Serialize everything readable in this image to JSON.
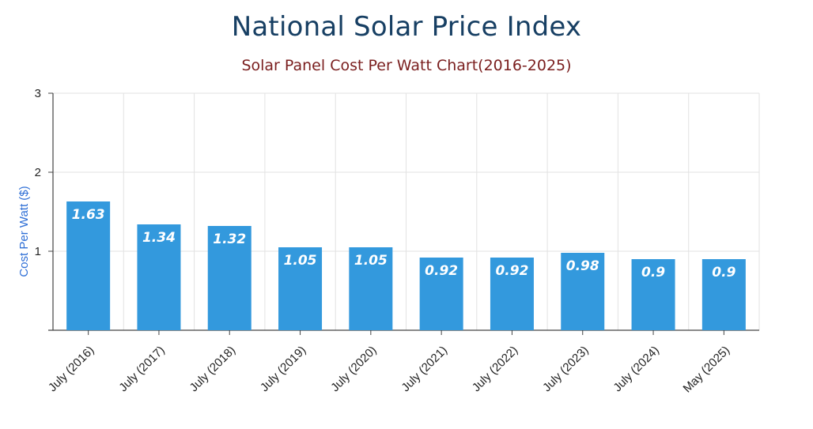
{
  "chart_data": {
    "type": "bar",
    "title": "National Solar Price Index",
    "subtitle": "Solar Panel Cost Per Watt Chart(2016-2025)",
    "xlabel": "",
    "ylabel": "Cost Per Watt ($)",
    "categories": [
      "July (2016)",
      "July (2017)",
      "July (2018)",
      "July (2019)",
      "July (2020)",
      "July (2021)",
      "July (2022)",
      "July (2023)",
      "July (2024)",
      "May (2025)"
    ],
    "values": [
      1.63,
      1.34,
      1.32,
      1.05,
      1.05,
      0.92,
      0.92,
      0.98,
      0.9,
      0.9
    ],
    "data_labels": [
      "1.63",
      "1.34",
      "1.32",
      "1.05",
      "1.05",
      "0.92",
      "0.92",
      "0.98",
      "0.9",
      "0.9"
    ],
    "ylim": [
      0,
      3
    ],
    "yticks": [
      1,
      2,
      3
    ],
    "ytick_labels": [
      "1",
      "2",
      "3"
    ],
    "grid": true,
    "bar_color": "#3399dd",
    "title_color": "#173f63",
    "subtitle_color": "#7a1e1e",
    "ylabel_color": "#2f6fd6"
  }
}
